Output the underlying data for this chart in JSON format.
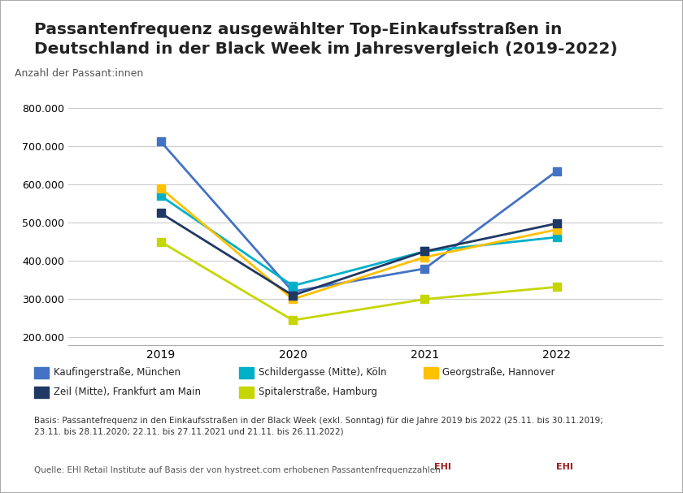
{
  "title": "Passantenfrequenz ausgewählter Top-Einkaufsstraßen in\nDeutschland in der Black Week im Jahresvergleich (2019-2022)",
  "ylabel": "Anzahl der Passant:innen",
  "years": [
    2019,
    2020,
    2021,
    2022
  ],
  "series": [
    {
      "name": "Kaufingerstraße, München",
      "values": [
        712000,
        320000,
        380000,
        635000
      ],
      "color": "#4472C4",
      "marker": "s"
    },
    {
      "name": "Schildergasse (Mitte), Köln",
      "values": [
        570000,
        335000,
        425000,
        462000
      ],
      "color": "#00B0C8",
      "marker": "s"
    },
    {
      "name": "Georgstraße, Hannover",
      "values": [
        590000,
        300000,
        410000,
        482000
      ],
      "color": "#FFC000",
      "marker": "s"
    },
    {
      "name": "Zeil (Mitte), Frankfurt am Main",
      "values": [
        525000,
        310000,
        425000,
        498000
      ],
      "color": "#1F3864",
      "marker": "s"
    },
    {
      "name": "Spitalerstraße, Hamburg",
      "values": [
        450000,
        245000,
        300000,
        332000
      ],
      "color": "#C5D600",
      "marker": "s"
    }
  ],
  "ylim": [
    180000,
    850000
  ],
  "yticks": [
    200000,
    300000,
    400000,
    500000,
    600000,
    700000,
    800000
  ],
  "ytick_labels": [
    "200.000",
    "300.000",
    "400.000",
    "500.000",
    "600.000",
    "700.000",
    "800.000"
  ],
  "background_color": "#FFFFFF",
  "basis_text": "Basis: Passantefrequenz in den Einkaufsstraßen in der Black Week (exkl. Sonntag) für die Jahre 2019 bis 2022 (25.11. bis 30.11.2019;\n23.11. bis 28.11.2020; 22.11. bis 27.11.2021 und 21.11. bis 26.11.2022)",
  "quelle_text": "Quelle: EHI Retail Institute auf Basis der von hystreet.com erhobenen Passantenfrequenzzahlen"
}
